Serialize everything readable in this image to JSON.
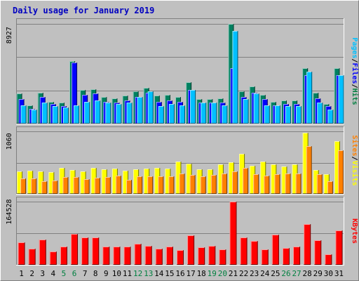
{
  "chart_data": {
    "type": "bar",
    "title": "Daily usage for January 2019",
    "categories": [
      "1",
      "2",
      "3",
      "4",
      "5",
      "6",
      "7",
      "8",
      "9",
      "10",
      "11",
      "12",
      "13",
      "14",
      "15",
      "16",
      "17",
      "18",
      "19",
      "20",
      "21",
      "22",
      "23",
      "24",
      "25",
      "26",
      "27",
      "28",
      "29",
      "30",
      "31"
    ],
    "weekend_days": [
      "5",
      "6",
      "12",
      "13",
      "19",
      "20",
      "26",
      "27"
    ],
    "panels": [
      {
        "id": "top",
        "max_label": "8927",
        "ymax": 8927,
        "axis_title": [
          "Pages",
          "/",
          "Files",
          "/",
          "Hits"
        ],
        "axis_title_colors": [
          "#00c0ff",
          "#000000",
          "#0000ff",
          "#000000",
          "#008040"
        ],
        "series": [
          {
            "name": "Hits",
            "color": "#008060",
            "values": [
              2600,
              1600,
              2700,
              1900,
              1800,
              5400,
              2900,
              3000,
              2300,
              2200,
              2400,
              2800,
              3100,
              2400,
              2500,
              2300,
              3600,
              2100,
              2100,
              2200,
              8600,
              2800,
              3200,
              2500,
              1900,
              2000,
              2000,
              4800,
              2700,
              1700,
              4800
            ]
          },
          {
            "name": "Files",
            "color": "#0000ff",
            "values": [
              2100,
              1300,
              2300,
              1700,
              1500,
              5300,
              2500,
              2600,
              1900,
              1800,
              2000,
              2300,
              2700,
              1900,
              2000,
              1900,
              2900,
              1800,
              1800,
              1800,
              4800,
              2300,
              2700,
              2100,
              1600,
              1700,
              1700,
              4200,
              2200,
              1500,
              4200
            ]
          },
          {
            "name": "Pages",
            "color": "#00c0ff",
            "values": [
              1600,
              1200,
              1800,
              1500,
              1400,
              1600,
              1900,
              2000,
              1800,
              1700,
              1800,
              2300,
              2800,
              1500,
              1700,
              1600,
              2900,
              1800,
              1800,
              1600,
              8000,
              2100,
              2600,
              1600,
              1600,
              1500,
              1500,
              4500,
              1800,
              1200,
              4200
            ]
          }
        ]
      },
      {
        "id": "middle",
        "max_label": "1060",
        "ymax": 1060,
        "axis_title": [
          "Sites",
          "/",
          "Visits"
        ],
        "axis_title_colors": [
          "#ff8000",
          "#000000",
          "#ffff00"
        ],
        "series": [
          {
            "name": "Visits",
            "color": "#ffff00",
            "values": [
              360,
              380,
              370,
              350,
              420,
              390,
              360,
              420,
              400,
              410,
              380,
              400,
              410,
              420,
              410,
              520,
              490,
              400,
              400,
              480,
              510,
              650,
              460,
              520,
              480,
              440,
              480,
              990,
              390,
              320,
              850
            ]
          },
          {
            "name": "Sites",
            "color": "#ff8000",
            "values": [
              250,
              250,
              210,
              220,
              270,
              270,
              240,
              260,
              270,
              300,
              230,
              280,
              280,
              280,
              290,
              330,
              310,
              280,
              310,
              330,
              360,
              420,
              320,
              300,
              320,
              330,
              330,
              770,
              320,
              210,
              710
            ]
          }
        ]
      },
      {
        "id": "bottom",
        "max_label": "164528",
        "ymax": 164528,
        "axis_title": [
          "KBytes"
        ],
        "axis_title_colors": [
          "#ff0000"
        ],
        "series": [
          {
            "name": "KBytes",
            "color": "#ff0000",
            "values": [
              56000,
              41000,
              63000,
              33000,
              46000,
              77000,
              68000,
              69000,
              45000,
              46000,
              46000,
              53000,
              48000,
              41000,
              46000,
              37000,
              74000,
              43000,
              47000,
              38000,
              158000,
              68000,
              60000,
              38000,
              76000,
              42000,
              46000,
              101000,
              62000,
              27000,
              86000
            ]
          }
        ]
      }
    ]
  }
}
